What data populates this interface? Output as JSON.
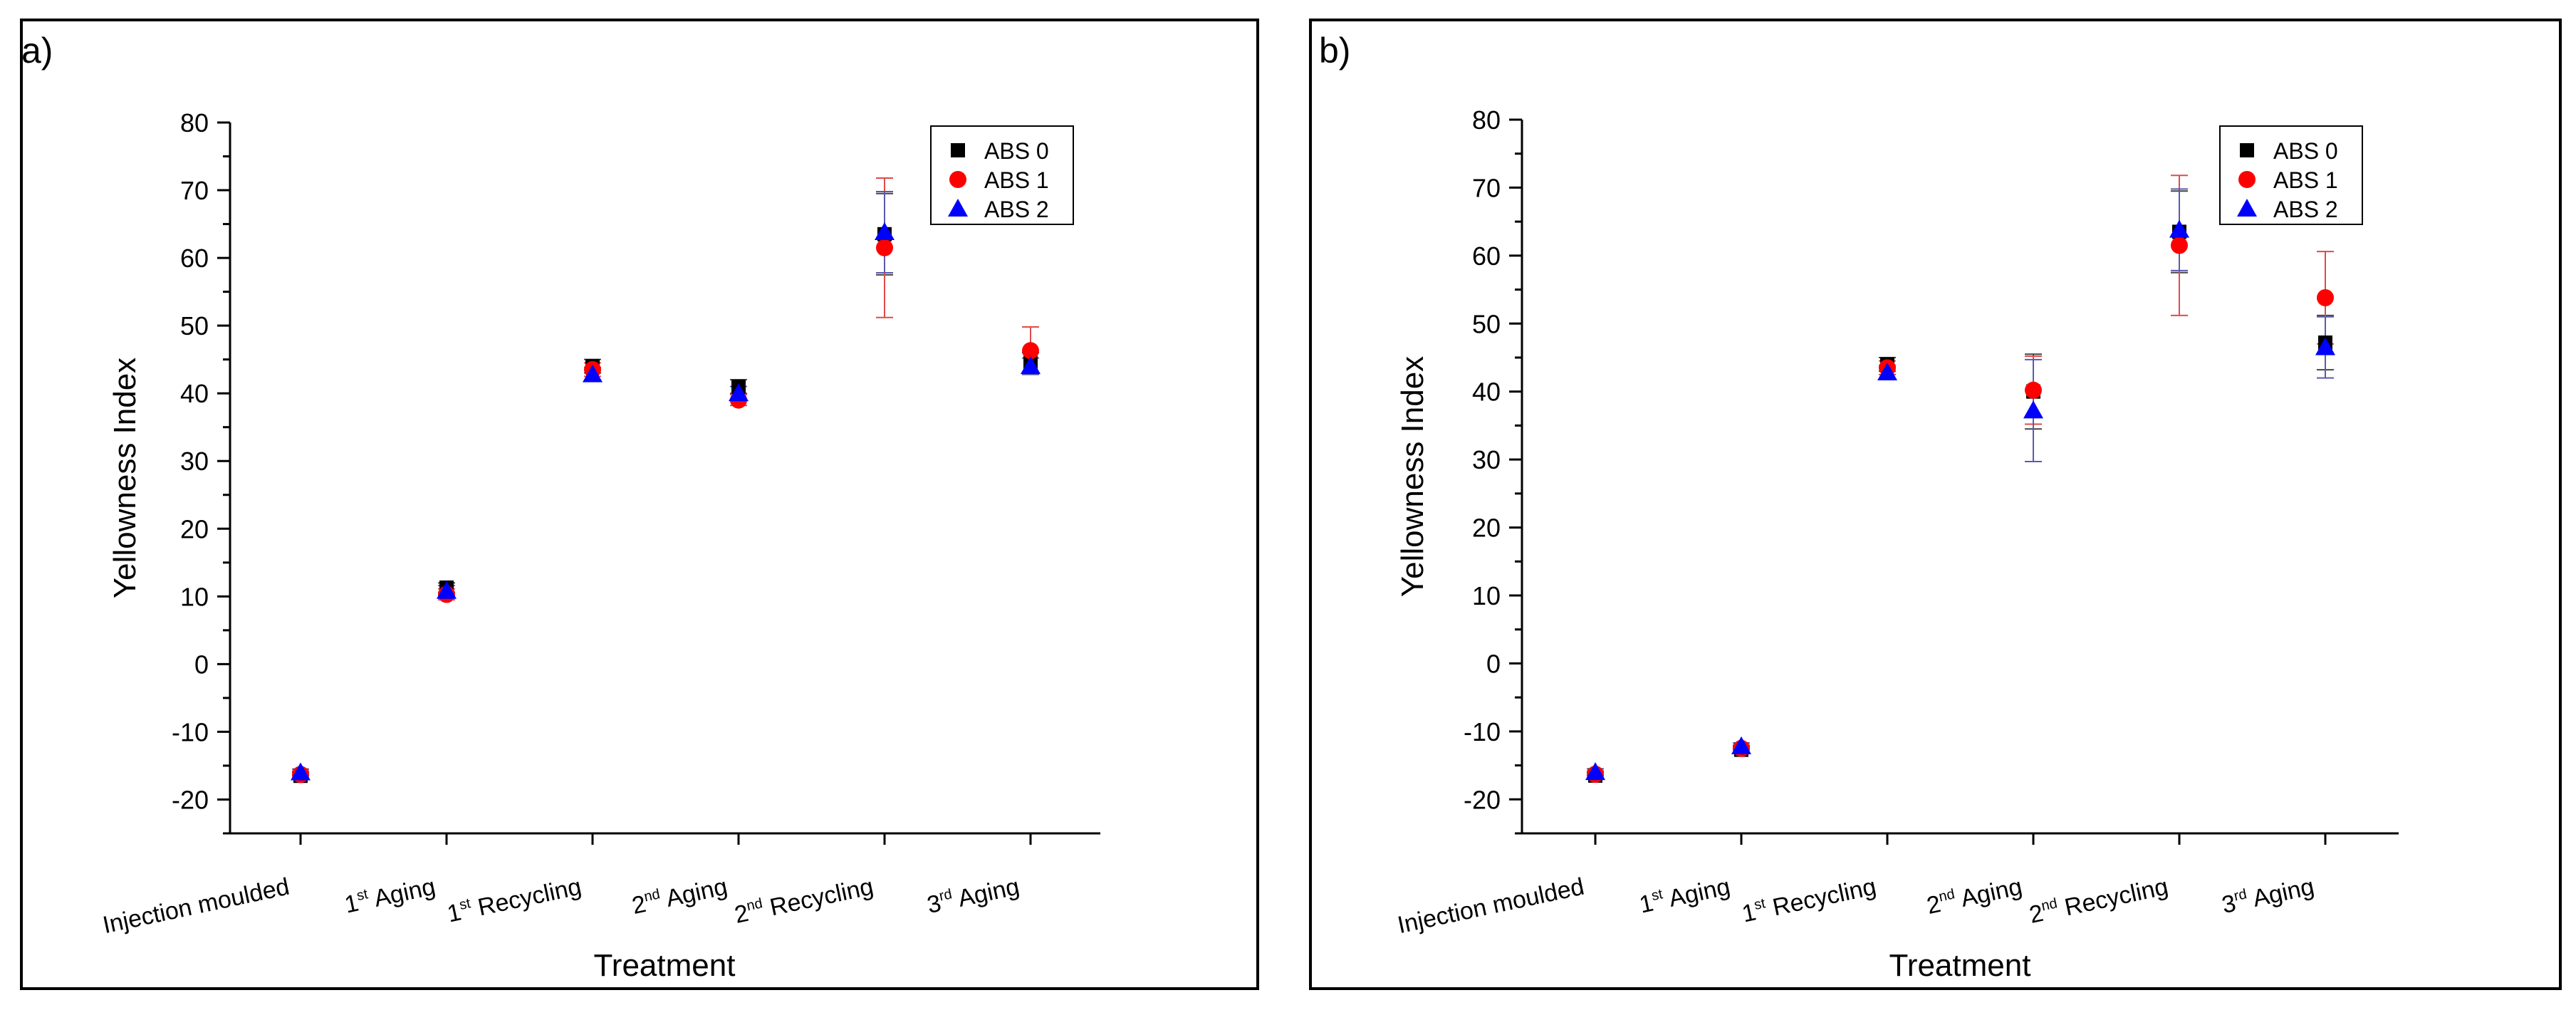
{
  "colors": {
    "abs0": "#000000",
    "abs1": "#ff0000",
    "abs2": "#0000ff",
    "abs1_err": "#e04a4a",
    "abs2_err": "#5a5ab0",
    "abs0_err": "#444444",
    "frame": "#000000"
  },
  "chart_data": [
    {
      "type": "scatter",
      "panel_label": "a)",
      "xlabel": "Treatment",
      "ylabel": "Yellowness Index",
      "ylim": [
        -25,
        80
      ],
      "yticks": [
        "-20",
        "-10",
        "0",
        "10",
        "20",
        "30",
        "40",
        "50",
        "60",
        "70",
        "80"
      ],
      "legend_position": "top-right",
      "categories": [
        {
          "base": "Injection moulded",
          "sup": "",
          "rest": ""
        },
        {
          "base": "1",
          "sup": "st",
          "rest": " Aging"
        },
        {
          "base": "1",
          "sup": "st",
          "rest": " Recycling"
        },
        {
          "base": "2",
          "sup": "nd",
          "rest": " Aging"
        },
        {
          "base": "2",
          "sup": "nd",
          "rest": " Recycling"
        },
        {
          "base": "3",
          "sup": "rd",
          "rest": " Aging"
        }
      ],
      "series": [
        {
          "name": "ABS 0",
          "marker": "square",
          "values": [
            -16.5,
            11.3,
            44.0,
            41.0,
            63.5,
            44.5
          ],
          "errors": [
            0.5,
            0.7,
            1.0,
            1.0,
            6.0,
            1.5
          ]
        },
        {
          "name": "ABS 1",
          "marker": "circle",
          "values": [
            -16.3,
            10.3,
            43.5,
            39.0,
            61.5,
            46.3
          ],
          "errors": [
            0.5,
            0.8,
            1.0,
            0.8,
            10.3,
            3.5
          ]
        },
        {
          "name": "ABS 2",
          "marker": "triangle",
          "values": [
            -16.0,
            10.8,
            42.8,
            40.0,
            63.8,
            44.0
          ],
          "errors": [
            0.5,
            0.8,
            1.0,
            1.0,
            6.0,
            1.2
          ]
        }
      ]
    },
    {
      "type": "scatter",
      "panel_label": "b)",
      "xlabel": "Treatment",
      "ylabel": "Yellowness Index",
      "ylim": [
        -25,
        80
      ],
      "yticks": [
        "-20",
        "-10",
        "0",
        "10",
        "20",
        "30",
        "40",
        "50",
        "60",
        "70",
        "80"
      ],
      "legend_position": "top-right",
      "categories": [
        {
          "base": "Injection moulded",
          "sup": "",
          "rest": ""
        },
        {
          "base": "1",
          "sup": "st",
          "rest": " Aging"
        },
        {
          "base": "1",
          "sup": "st",
          "rest": " Recycling"
        },
        {
          "base": "2",
          "sup": "nd",
          "rest": " Aging"
        },
        {
          "base": "2",
          "sup": "nd",
          "rest": " Recycling"
        },
        {
          "base": "3",
          "sup": "rd",
          "rest": " Aging"
        }
      ],
      "series": [
        {
          "name": "ABS 0",
          "marker": "square",
          "values": [
            -16.5,
            -12.7,
            44.0,
            40.0,
            63.5,
            47.2
          ],
          "errors": [
            0.5,
            0.5,
            1.0,
            5.5,
            6.0,
            4.0
          ]
        },
        {
          "name": "ABS 1",
          "marker": "circle",
          "values": [
            -16.3,
            -12.5,
            43.5,
            40.2,
            61.5,
            53.8
          ],
          "errors": [
            0.5,
            0.5,
            1.0,
            5.0,
            10.3,
            6.8
          ]
        },
        {
          "name": "ABS 2",
          "marker": "triangle",
          "values": [
            -16.0,
            -12.2,
            42.8,
            37.2,
            63.8,
            46.5
          ],
          "errors": [
            0.5,
            0.5,
            1.0,
            7.5,
            6.0,
            4.5
          ]
        }
      ]
    }
  ]
}
